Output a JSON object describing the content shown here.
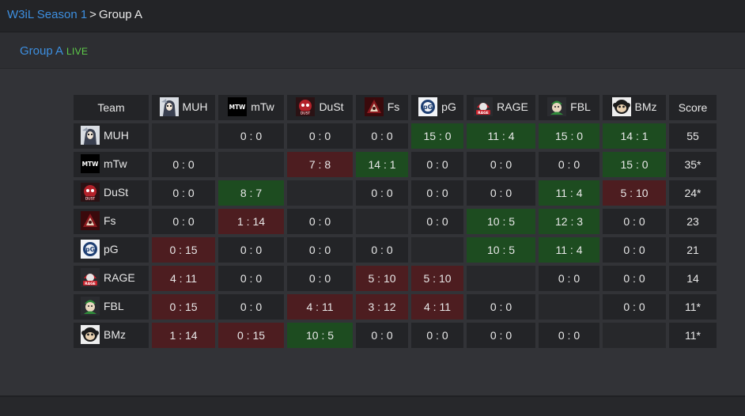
{
  "breadcrumb": {
    "season": "W3iL Season 1",
    "separator": ">",
    "current": "Group A"
  },
  "group": {
    "title": "Group A",
    "status": "LIVE"
  },
  "table": {
    "team_header": "Team",
    "score_header": "Score",
    "columns": [
      {
        "tag": "MUH",
        "icon": "muh-logo-icon"
      },
      {
        "tag": "mTw",
        "icon": "mtw-logo-icon"
      },
      {
        "tag": "DuSt",
        "icon": "dust-logo-icon"
      },
      {
        "tag": "Fs",
        "icon": "fs-logo-icon"
      },
      {
        "tag": "pG",
        "icon": "pg-logo-icon"
      },
      {
        "tag": "RAGE",
        "icon": "rage-logo-icon"
      },
      {
        "tag": "FBL",
        "icon": "fbl-logo-icon"
      },
      {
        "tag": "BMz",
        "icon": "bmz-logo-icon"
      }
    ],
    "rows": [
      {
        "tag": "MUH",
        "score": "55",
        "cells": [
          {
            "v": "",
            "r": "self"
          },
          {
            "v": "0 : 0",
            "r": "draw"
          },
          {
            "v": "0 : 0",
            "r": "draw"
          },
          {
            "v": "0 : 0",
            "r": "draw"
          },
          {
            "v": "15 : 0",
            "r": "win"
          },
          {
            "v": "11 : 4",
            "r": "win"
          },
          {
            "v": "15 : 0",
            "r": "win"
          },
          {
            "v": "14 : 1",
            "r": "win"
          }
        ]
      },
      {
        "tag": "mTw",
        "score": "35*",
        "cells": [
          {
            "v": "0 : 0",
            "r": "draw"
          },
          {
            "v": "",
            "r": "self"
          },
          {
            "v": "7 : 8",
            "r": "loss"
          },
          {
            "v": "14 : 1",
            "r": "win"
          },
          {
            "v": "0 : 0",
            "r": "draw"
          },
          {
            "v": "0 : 0",
            "r": "draw"
          },
          {
            "v": "0 : 0",
            "r": "draw"
          },
          {
            "v": "15 : 0",
            "r": "win"
          }
        ]
      },
      {
        "tag": "DuSt",
        "score": "24*",
        "cells": [
          {
            "v": "0 : 0",
            "r": "draw"
          },
          {
            "v": "8 : 7",
            "r": "win"
          },
          {
            "v": "",
            "r": "self"
          },
          {
            "v": "0 : 0",
            "r": "draw"
          },
          {
            "v": "0 : 0",
            "r": "draw"
          },
          {
            "v": "0 : 0",
            "r": "draw"
          },
          {
            "v": "11 : 4",
            "r": "win"
          },
          {
            "v": "5 : 10",
            "r": "loss"
          }
        ]
      },
      {
        "tag": "Fs",
        "score": "23",
        "cells": [
          {
            "v": "0 : 0",
            "r": "draw"
          },
          {
            "v": "1 : 14",
            "r": "loss"
          },
          {
            "v": "0 : 0",
            "r": "draw"
          },
          {
            "v": "",
            "r": "self"
          },
          {
            "v": "0 : 0",
            "r": "draw"
          },
          {
            "v": "10 : 5",
            "r": "win"
          },
          {
            "v": "12 : 3",
            "r": "win"
          },
          {
            "v": "0 : 0",
            "r": "draw"
          }
        ]
      },
      {
        "tag": "pG",
        "score": "21",
        "cells": [
          {
            "v": "0 : 15",
            "r": "loss"
          },
          {
            "v": "0 : 0",
            "r": "draw"
          },
          {
            "v": "0 : 0",
            "r": "draw"
          },
          {
            "v": "0 : 0",
            "r": "draw"
          },
          {
            "v": "",
            "r": "self"
          },
          {
            "v": "10 : 5",
            "r": "win"
          },
          {
            "v": "11 : 4",
            "r": "win"
          },
          {
            "v": "0 : 0",
            "r": "draw"
          }
        ]
      },
      {
        "tag": "RAGE",
        "score": "14",
        "cells": [
          {
            "v": "4 : 11",
            "r": "loss"
          },
          {
            "v": "0 : 0",
            "r": "draw"
          },
          {
            "v": "0 : 0",
            "r": "draw"
          },
          {
            "v": "5 : 10",
            "r": "loss"
          },
          {
            "v": "5 : 10",
            "r": "loss"
          },
          {
            "v": "",
            "r": "self"
          },
          {
            "v": "0 : 0",
            "r": "draw"
          },
          {
            "v": "0 : 0",
            "r": "draw"
          }
        ]
      },
      {
        "tag": "FBL",
        "score": "11*",
        "cells": [
          {
            "v": "0 : 15",
            "r": "loss"
          },
          {
            "v": "0 : 0",
            "r": "draw"
          },
          {
            "v": "4 : 11",
            "r": "loss"
          },
          {
            "v": "3 : 12",
            "r": "loss"
          },
          {
            "v": "4 : 11",
            "r": "loss"
          },
          {
            "v": "0 : 0",
            "r": "draw"
          },
          {
            "v": "",
            "r": "self"
          },
          {
            "v": "0 : 0",
            "r": "draw"
          }
        ]
      },
      {
        "tag": "BMz",
        "score": "11*",
        "cells": [
          {
            "v": "1 : 14",
            "r": "loss"
          },
          {
            "v": "0 : 15",
            "r": "loss"
          },
          {
            "v": "10 : 5",
            "r": "win"
          },
          {
            "v": "0 : 0",
            "r": "draw"
          },
          {
            "v": "0 : 0",
            "r": "draw"
          },
          {
            "v": "0 : 0",
            "r": "draw"
          },
          {
            "v": "0 : 0",
            "r": "draw"
          },
          {
            "v": "",
            "r": "self"
          }
        ]
      }
    ]
  },
  "colors": {
    "link": "#3d8fe0",
    "live": "#5fd04a",
    "win": "#1d4c20",
    "loss": "#4d1d20",
    "cell": "#232427"
  }
}
